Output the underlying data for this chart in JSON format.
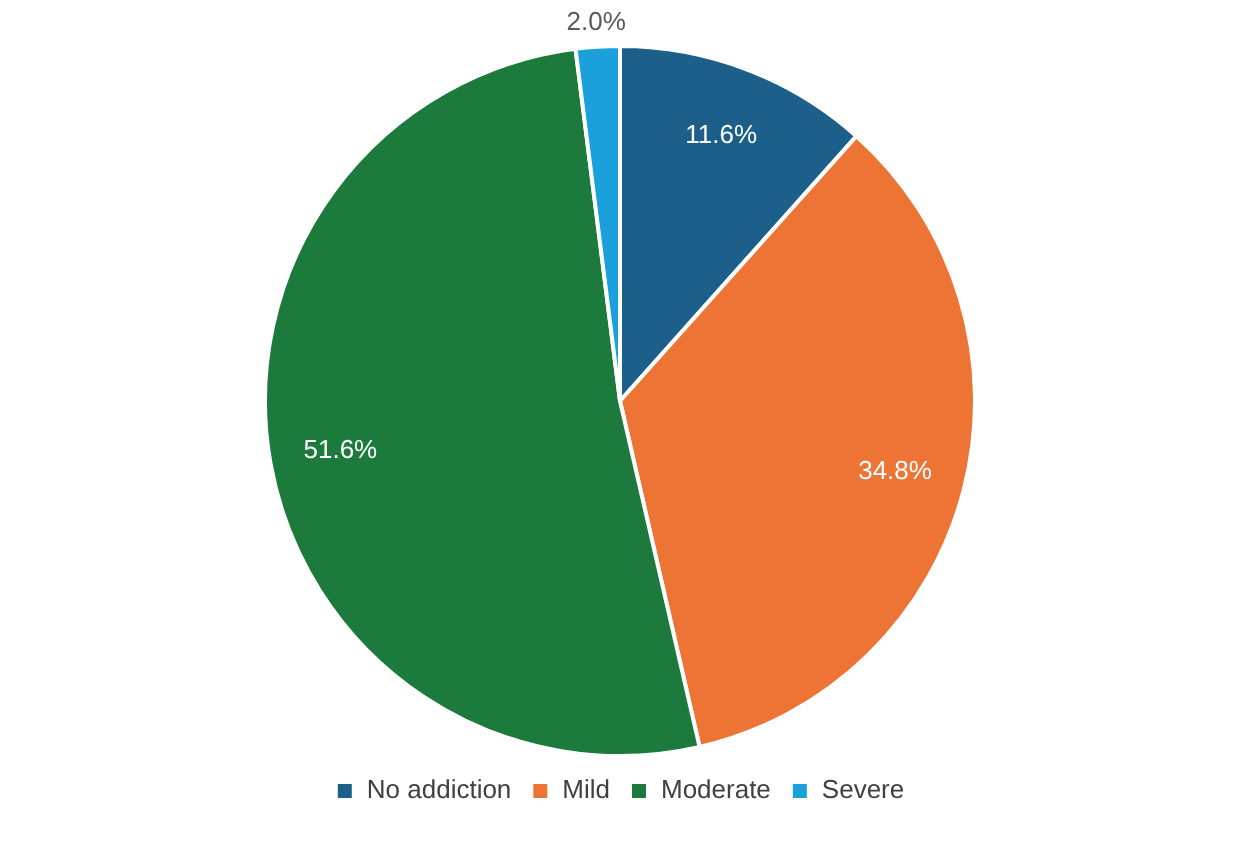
{
  "chart_data": {
    "type": "pie",
    "categories": [
      "No addiction",
      "Mild",
      "Moderate",
      "Severe"
    ],
    "values": [
      11.6,
      34.8,
      51.6,
      2.0
    ],
    "colors": [
      "#1c5f8a",
      "#ed7434",
      "#1c7a3c",
      "#1aa0da"
    ],
    "value_labels": [
      "11.6%",
      "34.8%",
      "51.6%",
      "2.0%"
    ],
    "legend": "bottom"
  }
}
